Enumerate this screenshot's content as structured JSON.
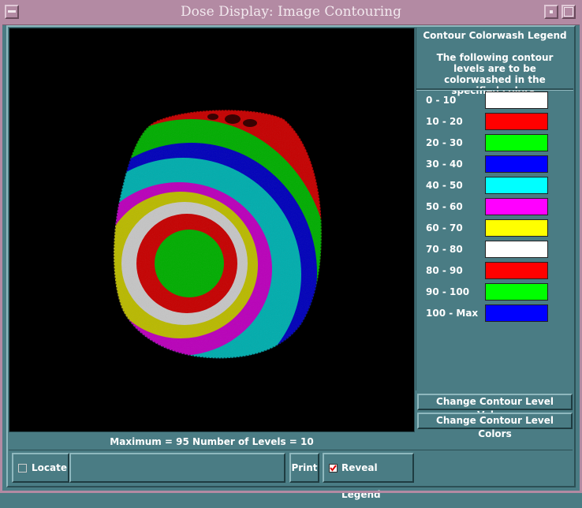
{
  "window": {
    "title": "Dose Display:  Image Contouring"
  },
  "legend": {
    "title": "Contour Colorwash Legend",
    "description": "The following contour levels are to be colorwashed in the specified colors.",
    "items": [
      {
        "label": "0 - 10",
        "color": "#ffffff"
      },
      {
        "label": "10 - 20",
        "color": "#ff0000"
      },
      {
        "label": "20 - 30",
        "color": "#00ff00"
      },
      {
        "label": "30 - 40",
        "color": "#0000ff"
      },
      {
        "label": "40 - 50",
        "color": "#00ffff"
      },
      {
        "label": "50 - 60",
        "color": "#ff00ff"
      },
      {
        "label": "60 - 70",
        "color": "#ffff00"
      },
      {
        "label": "70 - 80",
        "color": "#ffffff"
      },
      {
        "label": "80 - 90",
        "color": "#ff0000"
      },
      {
        "label": "90 - 100",
        "color": "#00ff00"
      },
      {
        "label": "100 - Max",
        "color": "#0000ff"
      }
    ],
    "change_values_label": "Change Contour Level Values",
    "change_colors_label": "Change Contour Level Colors"
  },
  "status": {
    "text": "Maximum = 95   Number of Levels = 10"
  },
  "bottom": {
    "locate_label": "Locate",
    "locate_checked": false,
    "print_label": "Print",
    "reveal_label": "Reveal Legend",
    "reveal_checked": true
  },
  "colors": {
    "background": "#4a7c84",
    "title_bar": "#b38aa3"
  }
}
